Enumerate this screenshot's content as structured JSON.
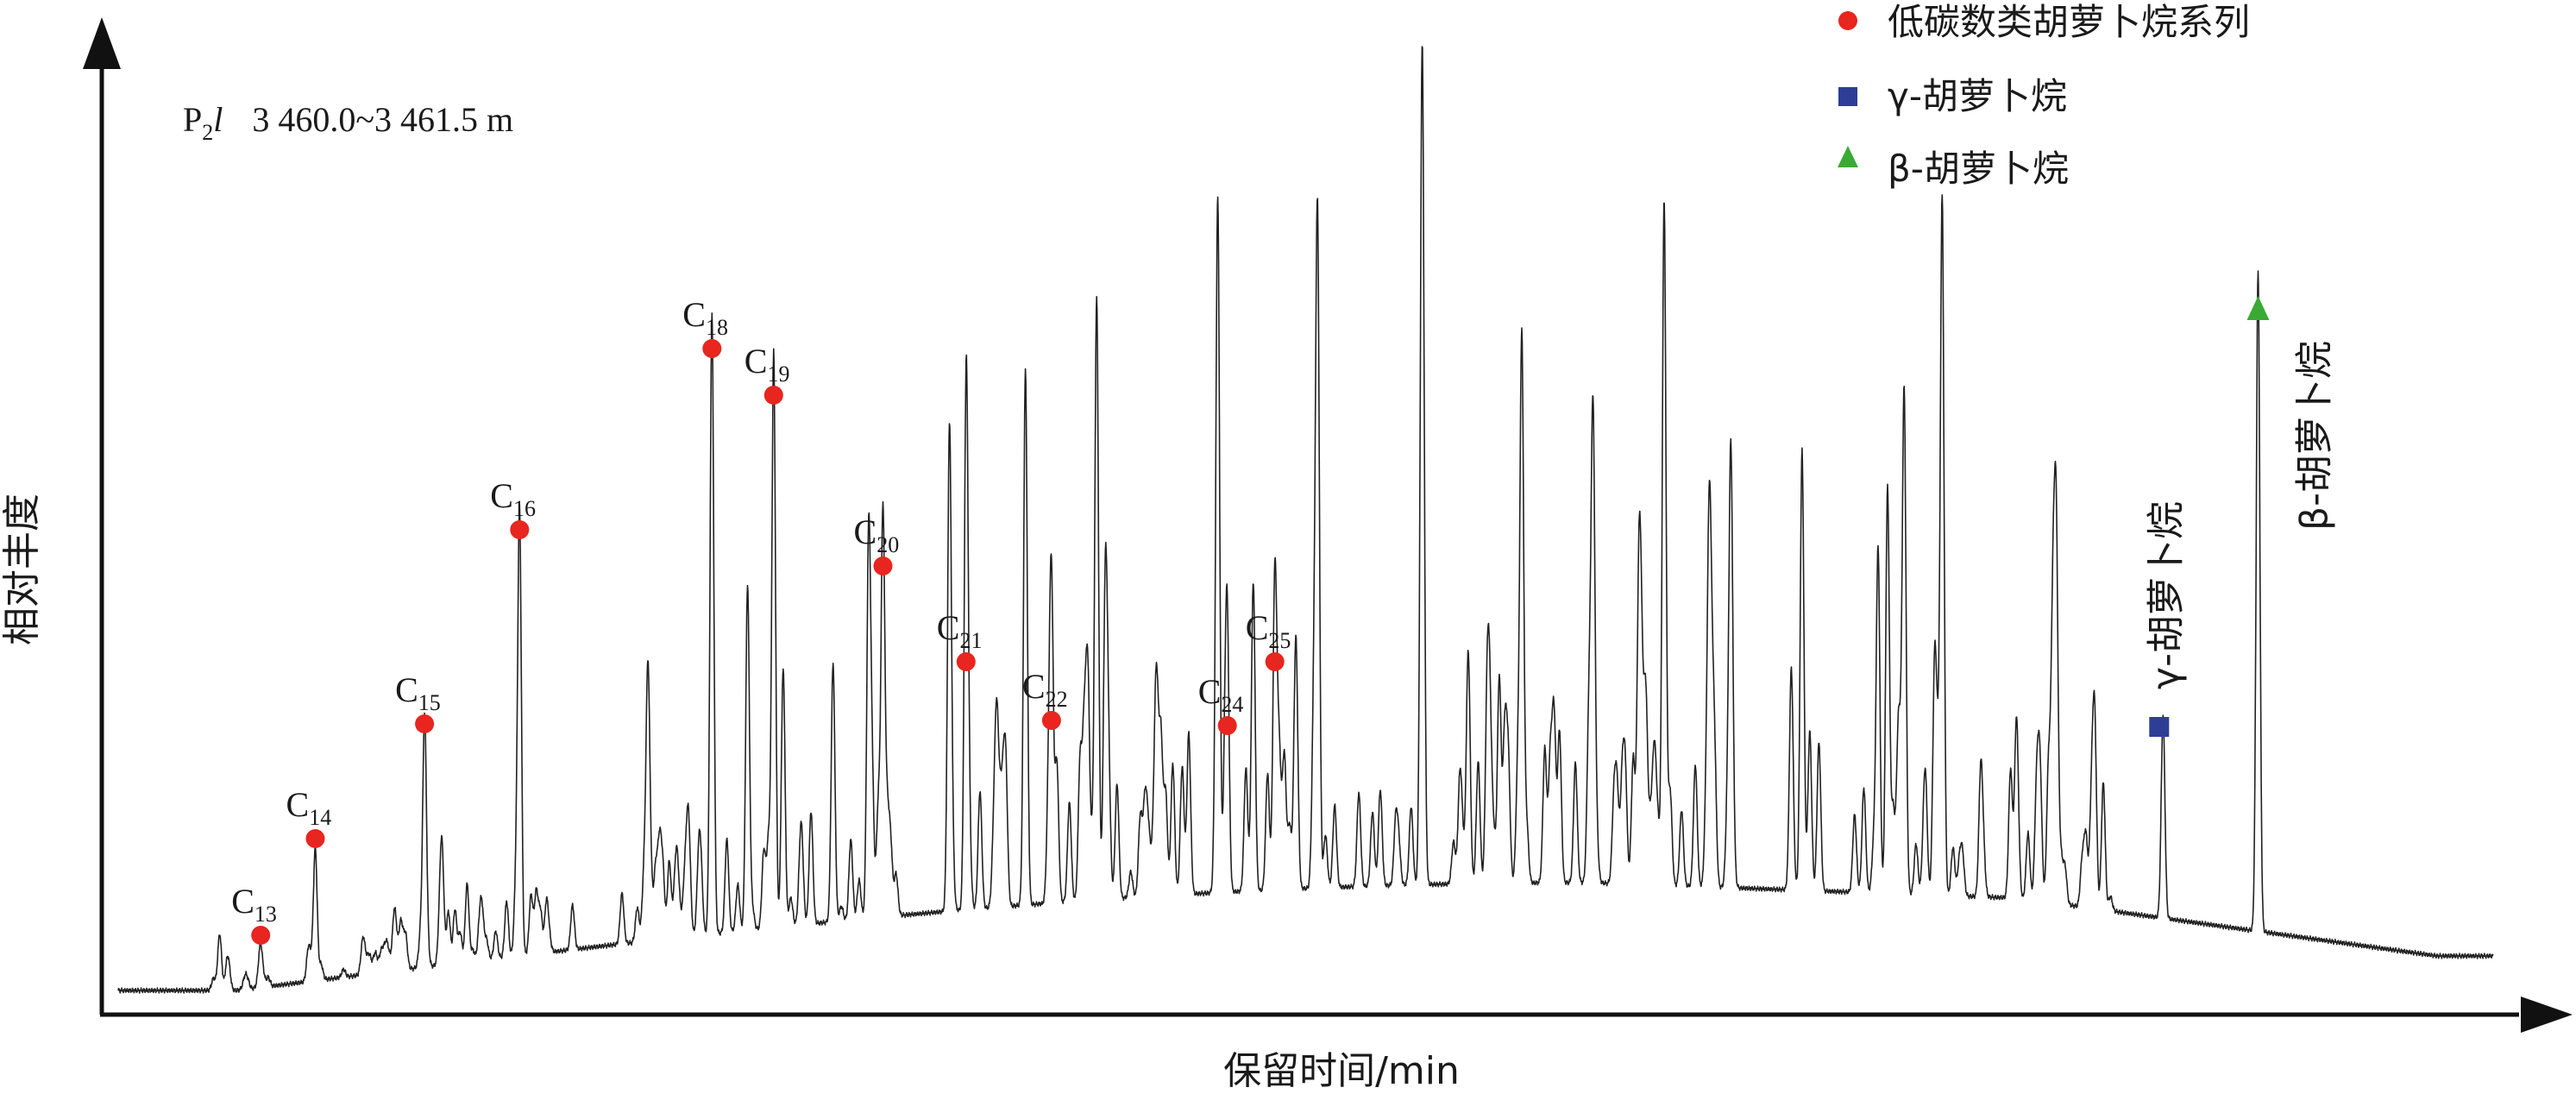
{
  "chart_data": {
    "type": "line",
    "title": "",
    "sample_label": {
      "main": "P",
      "sub": "2",
      "italic": "l",
      "depth": "3 460.0~3 461.5 m"
    },
    "xlabel": "保留时间/min",
    "ylabel": "相对丰度",
    "legend": {
      "placement": "top-right",
      "items": [
        {
          "label": "低碳数类胡萝卜烷系列",
          "marker": "circle",
          "color": "#e8251f"
        },
        {
          "label": "γ-胡萝卜烷",
          "marker": "square",
          "color": "#2e3d96"
        },
        {
          "label": "β-胡萝卜烷",
          "marker": "triangle",
          "color": "#3aaa35"
        }
      ]
    },
    "series": [
      {
        "name": "",
        "color": "#222222"
      }
    ],
    "carotane_peaks": [
      {
        "label": "C",
        "sub": "13",
        "rt": 0.06,
        "height": 0.04
      },
      {
        "label": "C",
        "sub": "14",
        "rt": 0.083,
        "height": 0.152
      },
      {
        "label": "C",
        "sub": "15",
        "rt": 0.129,
        "height": 0.285
      },
      {
        "label": "C",
        "sub": "16",
        "rt": 0.169,
        "height": 0.51
      },
      {
        "label": "C",
        "sub": "18",
        "rt": 0.25,
        "height": 0.72
      },
      {
        "label": "C",
        "sub": "19",
        "rt": 0.276,
        "height": 0.666
      },
      {
        "label": "C",
        "sub": "20",
        "rt": 0.322,
        "height": 0.468
      },
      {
        "label": "C",
        "sub": "21",
        "rt": 0.357,
        "height": 0.357
      },
      {
        "label": "C",
        "sub": "22",
        "rt": 0.393,
        "height": 0.289
      },
      {
        "label": "C",
        "sub": "24",
        "rt": 0.467,
        "height": 0.283
      },
      {
        "label": "C",
        "sub": "25",
        "rt": 0.487,
        "height": 0.357
      }
    ],
    "gamma_peak": {
      "label": "γ-胡萝卜烷",
      "rt": 0.861,
      "height": 0.235
    },
    "beta_peak": {
      "label": "β-胡萝卜烷",
      "rt": 0.901,
      "height": 0.765
    }
  }
}
